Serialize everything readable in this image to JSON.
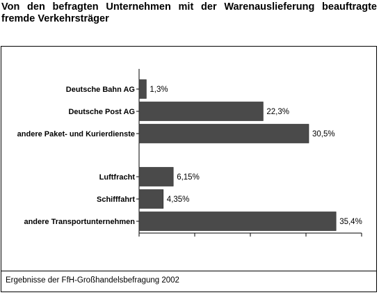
{
  "title": "Von den befragten Unternehmen mit der Warenauslieferung beauftragte fremde Verkehrsträger",
  "source": "Ergebnisse der FfH-Großhandelsbefragung 2002",
  "colors": {
    "bar": "#4a4a4a",
    "background": "#ffffff"
  },
  "chart_data": {
    "type": "bar",
    "orientation": "horizontal",
    "title": "Von den befragten Unternehmen mit der Warenauslieferung beauftragte fremde Verkehrsträger",
    "xlabel": "",
    "ylabel": "",
    "xlim": [
      0,
      40
    ],
    "grid": false,
    "legend": "none",
    "categories": [
      "Deutsche Bahn AG",
      "Deutsche Post AG",
      "andere Paket- und Kurierdienste",
      "Luftfracht",
      "Schifffahrt",
      "andere Transportunternehmen"
    ],
    "values": [
      1.3,
      22.3,
      30.5,
      6.15,
      4.35,
      35.4
    ],
    "value_labels": [
      "1,3%",
      "22,3%",
      "30,5%",
      "6,15%",
      "4,35%",
      "35,4%"
    ]
  }
}
